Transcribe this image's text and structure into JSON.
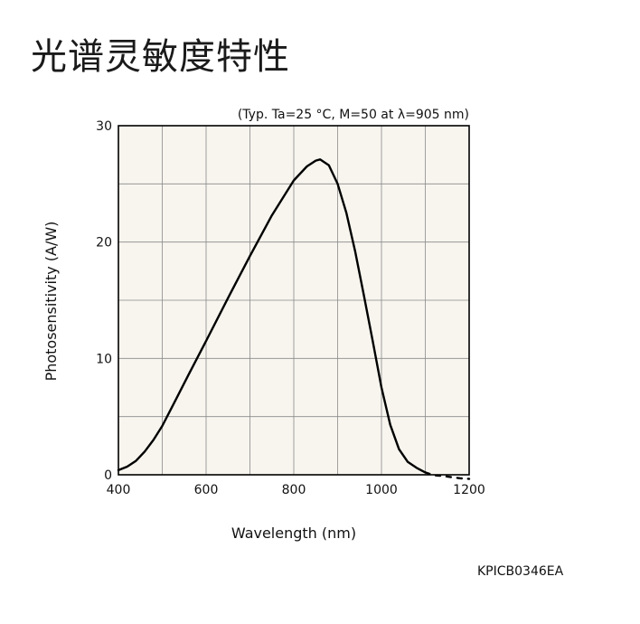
{
  "title": "光谱灵敏度特性",
  "figure_code": "KPICB0346EA",
  "chart_data": {
    "type": "line",
    "title": "",
    "condition": "(Typ. Ta=25 °C, M=50 at λ=905 nm)",
    "xlabel": "Wavelength (nm)",
    "ylabel": "Photosensitivity (A/W)",
    "xlim": [
      400,
      1200
    ],
    "ylim": [
      0,
      30
    ],
    "xticks": [
      400,
      600,
      800,
      1000,
      1200
    ],
    "yticks": [
      0,
      10,
      20,
      30
    ],
    "x_minor_grid_step": 100,
    "y_minor_grid_step": 5,
    "grid": true,
    "plot_background": "#f7f5ee",
    "line_color": "#000000",
    "series": [
      {
        "style": "solid",
        "x": [
          400,
          420,
          440,
          460,
          480,
          500,
          530,
          560,
          600,
          650,
          700,
          750,
          800,
          830,
          850,
          860,
          880,
          900,
          920,
          940,
          960,
          980,
          1000,
          1020,
          1040,
          1060,
          1080,
          1100
        ],
        "y": [
          0.4,
          0.7,
          1.2,
          2.0,
          3.0,
          4.2,
          6.4,
          8.6,
          11.5,
          15.2,
          18.8,
          22.3,
          25.3,
          26.5,
          27.0,
          27.1,
          26.6,
          25.0,
          22.5,
          19.2,
          15.4,
          11.5,
          7.5,
          4.3,
          2.2,
          1.1,
          0.6,
          0.2
        ]
      },
      {
        "style": "dashed",
        "x": [
          1100,
          1120,
          1140,
          1160,
          1180,
          1200
        ],
        "y": [
          0.2,
          -0.05,
          -0.1,
          -0.2,
          -0.3,
          -0.35
        ]
      }
    ]
  }
}
